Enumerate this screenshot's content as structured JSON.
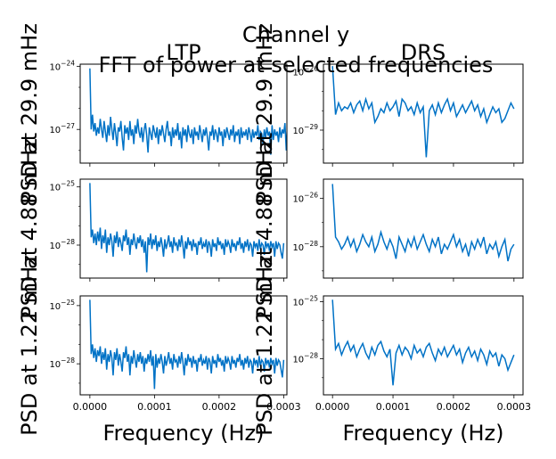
{
  "figure": {
    "suptitle_line1": "Channel y",
    "suptitle_line2": "FFT of power at selected frequencies"
  },
  "chart_data": [
    {
      "type": "line",
      "panel": "LTP / 29.9 mHz",
      "title": "LTP",
      "xlabel": "",
      "ylabel": "PSD at 29.9 mHz",
      "yscale": "log",
      "ylim_exp": [
        -28.6,
        -23.9
      ],
      "yticks_exp": [
        -27,
        -24
      ],
      "xlim": [
        -1.5e-05,
        0.000305
      ],
      "xticks": [
        0.0,
        0.0001,
        0.0002,
        0.0003
      ],
      "show_xticklabels": false,
      "series": [
        {
          "x_start": 0.0,
          "x_step": 2e-06,
          "color": "#0072c6",
          "y_exp": [
            -24.1,
            -27.0,
            -26.3,
            -27.1,
            -26.7,
            -27.3,
            -26.9,
            -27.2,
            -26.5,
            -27.0,
            -27.4,
            -26.6,
            -27.1,
            -27.6,
            -26.8,
            -27.3,
            -26.4,
            -27.0,
            -27.5,
            -26.7,
            -27.2,
            -27.8,
            -26.9,
            -27.1,
            -26.6,
            -27.4,
            -28.0,
            -26.8,
            -27.2,
            -26.9,
            -27.5,
            -26.6,
            -27.3,
            -27.0,
            -27.7,
            -26.8,
            -27.2,
            -26.5,
            -27.1,
            -27.4,
            -26.9,
            -27.6,
            -27.0,
            -26.7,
            -27.3,
            -28.1,
            -26.9,
            -27.2,
            -27.5,
            -26.8,
            -27.1,
            -27.4,
            -26.9,
            -27.7,
            -27.0,
            -27.3,
            -26.8,
            -27.2,
            -27.6,
            -27.0,
            -26.6,
            -27.3,
            -27.1,
            -27.8,
            -26.9,
            -27.4,
            -27.0,
            -27.3,
            -26.7,
            -27.5,
            -27.1,
            -27.9,
            -26.9,
            -27.3,
            -27.0,
            -27.6,
            -26.8,
            -27.2,
            -27.4,
            -27.0,
            -27.7,
            -26.9,
            -27.3,
            -27.1,
            -27.5,
            -26.8,
            -27.2,
            -27.6,
            -27.0,
            -27.3,
            -26.9,
            -27.4,
            -28.0,
            -27.1,
            -27.3,
            -26.8,
            -27.5,
            -27.0,
            -27.2,
            -27.6,
            -26.9,
            -27.3,
            -27.1,
            -27.8,
            -27.0,
            -27.4,
            -26.9,
            -27.2,
            -27.5,
            -27.0,
            -27.3,
            -26.8,
            -27.6,
            -27.1,
            -27.3,
            -27.0,
            -27.7,
            -26.9,
            -27.4,
            -27.1,
            -27.3,
            -27.0,
            -27.5,
            -26.9,
            -27.2,
            -27.6,
            -27.0,
            -27.4,
            -27.1,
            -27.3,
            -26.8,
            -27.5,
            -27.1,
            -27.2,
            -27.7,
            -27.0,
            -27.4,
            -26.9,
            -27.3,
            -27.1,
            -28.2,
            -26.8,
            -27.5,
            -27.0,
            -27.3,
            -27.1,
            -27.6,
            -26.9,
            -27.4,
            -27.0,
            -27.2,
            -26.7,
            -28.0,
            -26.6
          ]
        }
      ]
    },
    {
      "type": "line",
      "panel": "DRS / 29.9 mHz",
      "title": "DRS",
      "xlabel": "",
      "ylabel": "PSD at 29.9 mHz",
      "yscale": "log",
      "ylim_exp": [
        -30.7,
        -25.6
      ],
      "yticks_exp": [
        -29,
        -26
      ],
      "xlim": [
        -1.5e-05,
        0.000315
      ],
      "xticks": [
        0.0,
        0.0001,
        0.0002,
        0.0003
      ],
      "show_xticklabels": false,
      "series": [
        {
          "x_start": 0.0,
          "x_step": 5e-06,
          "color": "#0072c6",
          "y_exp": [
            -25.7,
            -28.2,
            -27.6,
            -28.0,
            -27.8,
            -27.9,
            -27.6,
            -28.1,
            -27.7,
            -27.5,
            -28.0,
            -27.4,
            -27.9,
            -27.6,
            -28.6,
            -28.3,
            -27.9,
            -28.1,
            -27.6,
            -28.0,
            -27.8,
            -27.5,
            -28.3,
            -27.4,
            -27.6,
            -28.0,
            -27.8,
            -28.2,
            -27.6,
            -28.1,
            -27.8,
            -30.4,
            -28.0,
            -27.7,
            -28.2,
            -27.6,
            -28.1,
            -27.7,
            -27.4,
            -28.0,
            -27.6,
            -28.3,
            -28.0,
            -27.7,
            -28.1,
            -27.8,
            -27.5,
            -28.0,
            -27.7,
            -28.3,
            -27.9,
            -28.6,
            -28.2,
            -27.8,
            -28.1,
            -27.9,
            -28.6,
            -28.4,
            -28.0,
            -27.6,
            -27.9
          ]
        }
      ]
    },
    {
      "type": "line",
      "panel": "LTP / 4.88 mHz",
      "title": "",
      "xlabel": "",
      "ylabel": "PSD at 4.88 mHz",
      "yscale": "log",
      "ylim_exp": [
        -29.7,
        -24.6
      ],
      "yticks_exp": [
        -28,
        -25
      ],
      "xlim": [
        -1.5e-05,
        0.000305
      ],
      "xticks": [
        0.0,
        0.0001,
        0.0002,
        0.0003
      ],
      "show_xticklabels": false,
      "series": [
        {
          "x_start": 0.0,
          "x_step": 2e-06,
          "color": "#0072c6",
          "y_exp": [
            -24.8,
            -27.6,
            -27.2,
            -27.9,
            -27.4,
            -28.0,
            -27.3,
            -27.8,
            -27.1,
            -28.2,
            -27.5,
            -27.9,
            -27.2,
            -28.4,
            -27.6,
            -28.0,
            -27.4,
            -27.8,
            -28.6,
            -27.5,
            -27.9,
            -27.3,
            -28.1,
            -27.6,
            -27.9,
            -28.3,
            -27.5,
            -27.8,
            -27.2,
            -28.0,
            -27.6,
            -28.5,
            -27.7,
            -28.0,
            -27.4,
            -27.9,
            -28.2,
            -27.6,
            -27.9,
            -27.5,
            -28.1,
            -27.7,
            -28.4,
            -27.8,
            -29.4,
            -27.6,
            -28.0,
            -27.4,
            -28.2,
            -27.7,
            -28.0,
            -27.5,
            -28.3,
            -27.8,
            -28.1,
            -27.6,
            -28.0,
            -28.6,
            -27.7,
            -28.2,
            -27.9,
            -27.5,
            -28.1,
            -27.8,
            -28.4,
            -27.6,
            -28.0,
            -27.9,
            -28.3,
            -27.7,
            -28.1,
            -27.5,
            -28.0,
            -28.7,
            -27.8,
            -28.2,
            -27.6,
            -28.0,
            -27.8,
            -28.3,
            -27.7,
            -28.1,
            -27.9,
            -28.5,
            -27.8,
            -28.0,
            -27.6,
            -28.2,
            -27.9,
            -28.1,
            -27.7,
            -28.4,
            -27.8,
            -28.0,
            -28.6,
            -27.7,
            -28.1,
            -27.9,
            -28.3,
            -27.6,
            -28.0,
            -27.8,
            -28.2,
            -27.9,
            -28.5,
            -27.7,
            -28.1,
            -27.8,
            -28.0,
            -28.4,
            -27.7,
            -28.1,
            -27.9,
            -28.3,
            -27.8,
            -28.0,
            -27.6,
            -28.2,
            -27.9,
            -28.4,
            -27.8,
            -28.1,
            -27.7,
            -28.3,
            -27.9,
            -28.0,
            -28.6,
            -27.8,
            -28.1,
            -27.9,
            -28.3,
            -27.7,
            -28.2,
            -27.9,
            -28.0,
            -28.5,
            -27.8,
            -28.1,
            -27.9,
            -28.3,
            -27.8,
            -28.1,
            -27.9,
            -28.6,
            -27.8,
            -28.2,
            -27.9,
            -28.0,
            -28.4,
            -28.7,
            -27.9
          ]
        }
      ]
    },
    {
      "type": "line",
      "panel": "DRS / 4.88 mHz",
      "title": "",
      "xlabel": "",
      "ylabel": "PSD at 4.88 mHz",
      "yscale": "log",
      "ylim_exp": [
        -29.3,
        -25.2
      ],
      "yticks_exp": [
        -28,
        -26
      ],
      "xlim": [
        -1.5e-05,
        0.000315
      ],
      "xticks": [
        0.0,
        0.0001,
        0.0002,
        0.0003
      ],
      "show_xticklabels": false,
      "series": [
        {
          "x_start": 0.0,
          "x_step": 5e-06,
          "color": "#0072c6",
          "y_exp": [
            -25.4,
            -27.6,
            -27.8,
            -28.1,
            -27.9,
            -27.6,
            -28.0,
            -27.7,
            -28.2,
            -27.9,
            -27.5,
            -27.8,
            -28.0,
            -27.6,
            -28.2,
            -27.9,
            -27.4,
            -27.8,
            -28.1,
            -27.7,
            -28.0,
            -28.5,
            -27.6,
            -27.9,
            -28.2,
            -27.7,
            -28.0,
            -27.6,
            -28.1,
            -27.8,
            -27.5,
            -27.9,
            -28.2,
            -27.7,
            -28.0,
            -27.6,
            -28.3,
            -27.9,
            -28.1,
            -27.8,
            -27.5,
            -28.0,
            -27.7,
            -28.2,
            -27.9,
            -28.4,
            -27.8,
            -28.1,
            -27.7,
            -28.0,
            -27.6,
            -28.3,
            -27.9,
            -28.1,
            -27.8,
            -28.4,
            -28.0,
            -27.7,
            -28.6,
            -28.1,
            -27.9
          ]
        }
      ]
    },
    {
      "type": "line",
      "panel": "LTP / 1.22 mHz",
      "title": "",
      "xlabel": "Frequency (Hz)",
      "ylabel": "PSD at 1.22 mHz",
      "yscale": "log",
      "ylim_exp": [
        -29.6,
        -24.5
      ],
      "yticks_exp": [
        -28,
        -25
      ],
      "xlim": [
        -1.5e-05,
        0.000305
      ],
      "xticks": [
        0.0,
        0.0001,
        0.0002,
        0.0003
      ],
      "xticklabels": [
        "0.0000",
        "0.0001",
        "0.0002",
        "0.0003"
      ],
      "show_xticklabels": true,
      "series": [
        {
          "x_start": 0.0,
          "x_step": 2e-06,
          "color": "#0072c6",
          "y_exp": [
            -24.7,
            -27.5,
            -27.0,
            -27.7,
            -27.2,
            -27.9,
            -27.3,
            -27.6,
            -27.1,
            -28.0,
            -27.4,
            -27.8,
            -27.2,
            -28.3,
            -27.5,
            -27.9,
            -27.3,
            -27.7,
            -28.6,
            -27.4,
            -27.8,
            -27.2,
            -28.1,
            -27.5,
            -27.9,
            -28.4,
            -27.4,
            -27.7,
            -27.1,
            -27.9,
            -27.5,
            -28.6,
            -27.6,
            -28.0,
            -27.3,
            -27.8,
            -28.2,
            -27.5,
            -27.9,
            -27.4,
            -28.0,
            -27.6,
            -28.4,
            -27.7,
            -28.0,
            -27.5,
            -27.9,
            -27.3,
            -28.1,
            -27.6,
            -29.3,
            -27.5,
            -28.2,
            -27.7,
            -28.0,
            -27.5,
            -27.9,
            -28.5,
            -27.6,
            -28.1,
            -27.8,
            -27.4,
            -28.0,
            -27.7,
            -28.3,
            -27.5,
            -27.9,
            -27.8,
            -28.2,
            -27.6,
            -28.0,
            -27.4,
            -27.9,
            -28.6,
            -27.7,
            -28.1,
            -27.5,
            -27.9,
            -27.7,
            -28.2,
            -27.6,
            -28.0,
            -27.8,
            -28.4,
            -27.7,
            -27.9,
            -27.5,
            -28.1,
            -27.8,
            -28.0,
            -27.6,
            -28.3,
            -27.7,
            -27.9,
            -28.5,
            -27.6,
            -28.0,
            -27.8,
            -28.2,
            -27.5,
            -27.9,
            -27.7,
            -28.1,
            -27.8,
            -28.4,
            -27.6,
            -28.0,
            -27.7,
            -27.9,
            -28.3,
            -27.6,
            -28.0,
            -27.8,
            -28.2,
            -27.7,
            -27.9,
            -27.5,
            -28.1,
            -27.8,
            -28.3,
            -27.7,
            -28.0,
            -27.6,
            -28.2,
            -27.8,
            -27.9,
            -28.5,
            -27.7,
            -28.0,
            -27.8,
            -28.2,
            -27.6,
            -28.1,
            -27.8,
            -27.9,
            -28.4,
            -27.7,
            -28.0,
            -27.8,
            -28.2,
            -27.7,
            -28.0,
            -27.8,
            -28.5,
            -27.7,
            -28.1,
            -27.8,
            -27.9,
            -28.3,
            -28.7,
            -27.8
          ]
        }
      ]
    },
    {
      "type": "line",
      "panel": "DRS / 1.22 mHz",
      "title": "",
      "xlabel": "Frequency (Hz)",
      "ylabel": "PSD at 1.22 mHz",
      "yscale": "log",
      "ylim_exp": [
        -29.9,
        -24.7
      ],
      "yticks_exp": [
        -28,
        -25
      ],
      "xlim": [
        -1.5e-05,
        0.000315
      ],
      "xticks": [
        0.0,
        0.0001,
        0.0002,
        0.0003
      ],
      "xticklabels": [
        "0.0000",
        "0.0001",
        "0.0002",
        "0.0003"
      ],
      "show_xticklabels": true,
      "series": [
        {
          "x_start": 0.0,
          "x_step": 5e-06,
          "color": "#0072c6",
          "y_exp": [
            -24.9,
            -27.5,
            -27.2,
            -27.8,
            -27.4,
            -27.1,
            -27.6,
            -27.3,
            -27.9,
            -27.5,
            -27.2,
            -27.7,
            -28.0,
            -27.4,
            -27.8,
            -27.3,
            -27.1,
            -27.6,
            -27.9,
            -27.5,
            -29.4,
            -27.7,
            -27.3,
            -27.8,
            -27.4,
            -27.6,
            -28.0,
            -27.3,
            -27.7,
            -27.5,
            -27.9,
            -27.4,
            -27.2,
            -27.7,
            -28.1,
            -27.5,
            -27.8,
            -27.4,
            -27.9,
            -27.6,
            -27.3,
            -27.8,
            -27.5,
            -28.2,
            -27.7,
            -27.4,
            -27.9,
            -27.6,
            -28.1,
            -27.5,
            -27.8,
            -28.3,
            -27.6,
            -27.9,
            -27.7,
            -28.4,
            -27.8,
            -28.0,
            -28.6,
            -28.2,
            -27.8
          ]
        }
      ]
    }
  ]
}
